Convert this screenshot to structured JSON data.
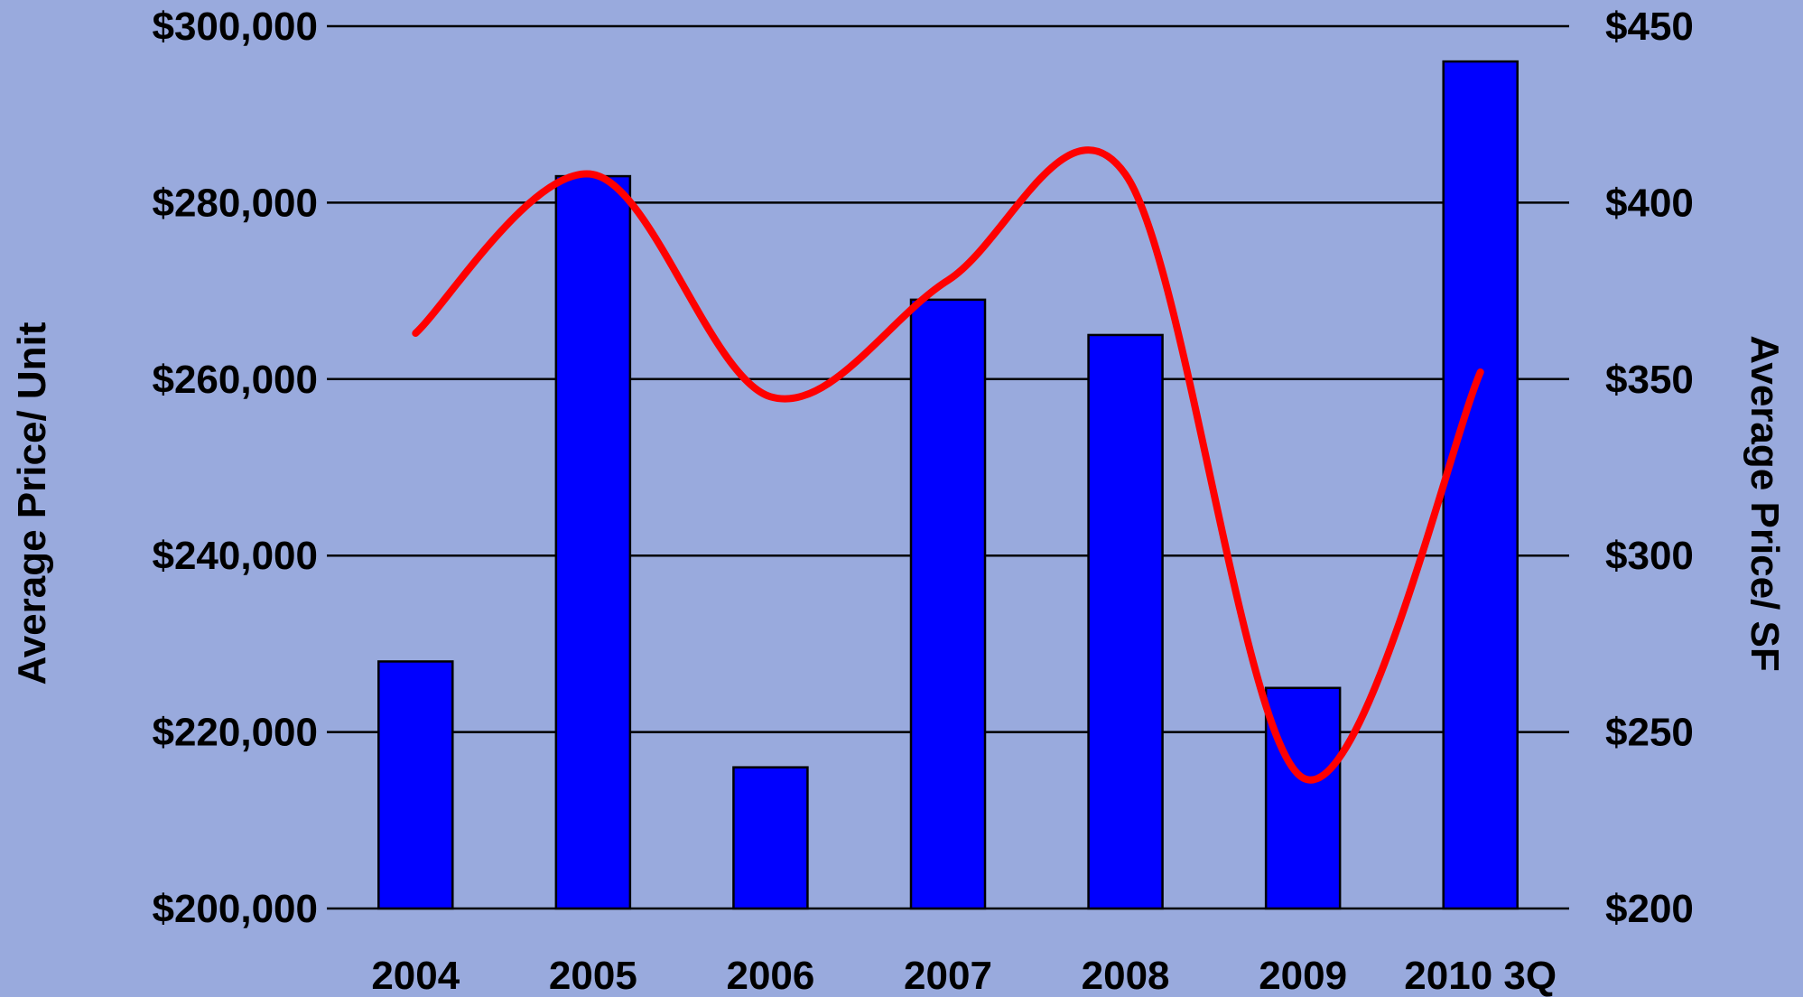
{
  "chart_data": {
    "type": "bar",
    "title": "",
    "categories": [
      "2004",
      "2005",
      "2006",
      "2007",
      "2008",
      "2009",
      "2010 3Q"
    ],
    "series": [
      {
        "axis": "left",
        "type": "bar",
        "values": [
          228000,
          283000,
          216000,
          269000,
          265000,
          225000,
          296000
        ],
        "color": "#0000ff"
      },
      {
        "axis": "right",
        "type": "line",
        "smooth": true,
        "values": [
          363,
          408,
          345,
          378,
          408,
          237,
          352
        ],
        "color": "#ff0000"
      }
    ],
    "ylabel": "Average Price/ Unit",
    "ylabel_right": "Average Price/ SF",
    "ylim": [
      200000,
      300000
    ],
    "ylim_right": [
      200,
      450
    ],
    "yticks": [
      "$200,000",
      "$220,000",
      "$240,000",
      "$260,000",
      "$280,000",
      "$300,000"
    ],
    "yticks_right": [
      "$200",
      "$250",
      "$300",
      "$350",
      "$400",
      "$450"
    ],
    "grid": true,
    "background_color": "#99aadd"
  }
}
